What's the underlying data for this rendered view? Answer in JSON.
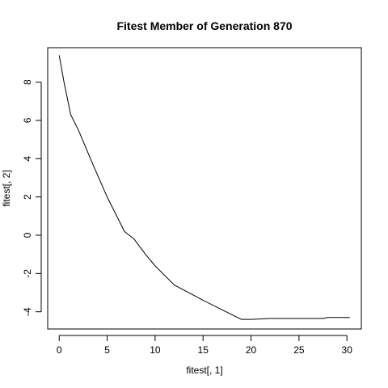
{
  "chart_data": {
    "type": "line",
    "title": "Fitest Member of Generation 870",
    "xlabel": "fitest[, 1]",
    "ylabel": "fitest[, 2]",
    "xlim": [
      -1.2,
      31.5
    ],
    "ylim": [
      -4.9,
      9.8
    ],
    "xticks": [
      0,
      5,
      10,
      15,
      20,
      25,
      30
    ],
    "yticks": [
      -4,
      -2,
      0,
      2,
      4,
      6,
      8
    ],
    "grid": false,
    "line_color": "#000000",
    "series": [
      {
        "x": [
          0.0,
          0.5,
          1.2,
          2.0,
          3.6,
          5.0,
          6.8,
          7.8,
          9.0,
          10.0,
          12.0,
          15.0,
          19.0,
          20.0,
          22.0,
          25.0,
          27.5,
          28.0,
          30.3
        ],
        "y": [
          9.4,
          8.0,
          6.3,
          5.5,
          3.6,
          2.0,
          0.2,
          -0.2,
          -1.0,
          -1.6,
          -2.6,
          -3.4,
          -4.4,
          -4.4,
          -4.35,
          -4.35,
          -4.35,
          -4.3,
          -4.3
        ]
      }
    ]
  }
}
